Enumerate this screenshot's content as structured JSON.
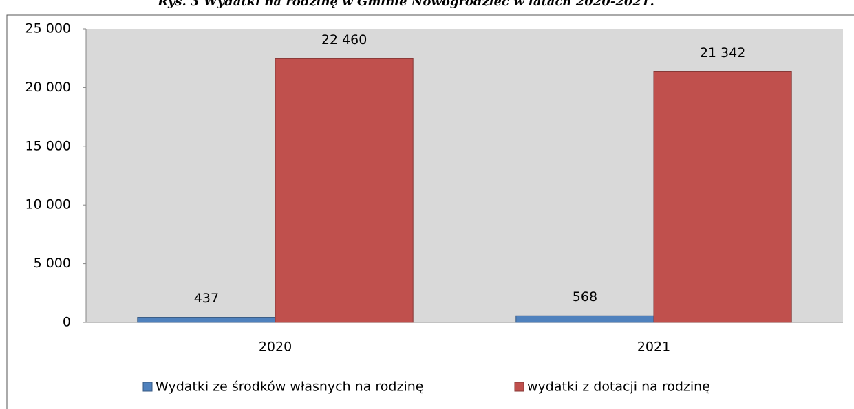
{
  "chart_data": {
    "type": "bar",
    "title": "Rys. 3 Wydatki na rodzinę w Gminie Nowogrodziec w latach 2020-2021.",
    "categories": [
      "2020",
      "2021"
    ],
    "series": [
      {
        "name": "Wydatki ze środków własnych na rodzinę",
        "color": "#4f81bd",
        "values": [
          437,
          568
        ],
        "value_labels": [
          "437",
          "568"
        ]
      },
      {
        "name": "wydatki z dotacji na rodzinę",
        "color": "#c0504d",
        "values": [
          22460,
          21342
        ],
        "value_labels": [
          "22 460",
          "21 342"
        ]
      }
    ],
    "ylim": [
      0,
      25000
    ],
    "yticks": [
      0,
      {
        "value": 5000,
        "label": "5 000"
      },
      {
        "value": 10000,
        "label": "10 000"
      },
      {
        "value": 15000,
        "label": "15 000"
      },
      {
        "value": 20000,
        "label": "20 000"
      },
      {
        "value": 25000,
        "label": "25 000"
      }
    ],
    "grid": false,
    "legend": "bottom"
  }
}
